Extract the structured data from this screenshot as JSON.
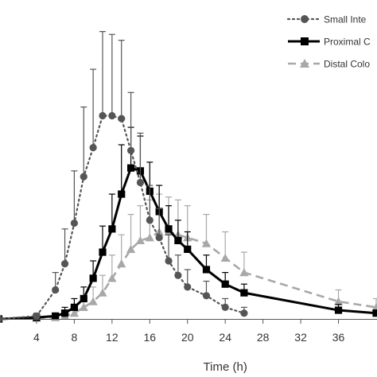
{
  "chart_data": {
    "type": "line",
    "title": "",
    "xlabel": "Time (h)",
    "ylabel": "",
    "xlim": [
      0,
      40
    ],
    "ylim": [
      0,
      100
    ],
    "xticks": [
      4,
      8,
      12,
      16,
      20,
      24,
      28,
      32,
      36
    ],
    "grid": false,
    "legend_position": "top-right",
    "series": [
      {
        "name": "Small Inte",
        "style": "dotted",
        "marker": "circle",
        "color": "#555555",
        "x": [
          0,
          4,
          6,
          7,
          8,
          9,
          10,
          11,
          12,
          13,
          14,
          15,
          16,
          17,
          18,
          19,
          20,
          22,
          24,
          26
        ],
        "y": [
          0,
          1,
          10,
          19,
          33,
          49,
          59,
          70,
          70,
          69,
          58,
          47,
          34,
          28,
          20,
          15,
          11,
          8,
          4,
          2
        ],
        "err": [
          0,
          1,
          6,
          12,
          18,
          24,
          27,
          29,
          28,
          27,
          20,
          17,
          12,
          10,
          9,
          7,
          6,
          5,
          3,
          2
        ]
      },
      {
        "name": "Proximal C",
        "style": "solid",
        "marker": "square",
        "color": "#000000",
        "x": [
          0,
          4,
          6,
          7,
          8,
          9,
          10,
          11,
          12,
          13,
          14,
          15,
          16,
          17,
          18,
          19,
          20,
          22,
          24,
          26,
          36,
          40
        ],
        "y": [
          0,
          0.5,
          1,
          2,
          4,
          7,
          14,
          23,
          31,
          43,
          52,
          51,
          44,
          37,
          31,
          27,
          24,
          17,
          12,
          9,
          3,
          2
        ],
        "err": [
          0,
          0.5,
          1,
          2,
          3,
          4,
          6,
          9,
          12,
          17,
          14,
          12,
          10,
          9,
          8,
          7,
          6,
          5,
          4,
          3,
          2,
          1
        ]
      },
      {
        "name": "Distal Colo",
        "style": "dashed",
        "marker": "triangle",
        "color": "#a8a8a8",
        "x": [
          0,
          4,
          6,
          7,
          8,
          9,
          10,
          11,
          12,
          13,
          14,
          15,
          16,
          17,
          18,
          19,
          20,
          22,
          24,
          26,
          36,
          40
        ],
        "y": [
          0,
          0.3,
          0.5,
          1,
          2,
          4,
          6,
          9,
          14,
          19,
          24,
          27,
          28,
          30,
          30,
          29,
          28,
          26,
          21,
          16,
          6,
          4
        ],
        "err": [
          0,
          0.3,
          0.5,
          1,
          2,
          3,
          5,
          6,
          8,
          10,
          12,
          12,
          13,
          13,
          12,
          12,
          11,
          10,
          9,
          7,
          4,
          3
        ]
      }
    ]
  }
}
